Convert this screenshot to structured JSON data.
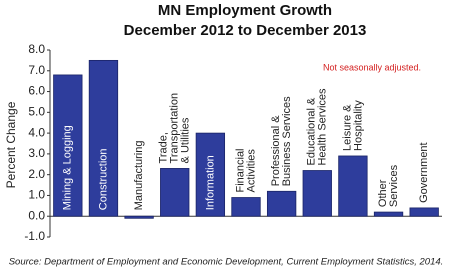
{
  "chart_data": {
    "type": "bar",
    "title": [
      "MN Employment Growth",
      "December 2012 to December 2013"
    ],
    "y_label": "Percent Change",
    "annotation": "Not seasonally adjusted.",
    "source": "Source: Department of Employment and Economic Development, Current Employment Statistics, 2014.",
    "categories": [
      [
        "Mining & Logging"
      ],
      [
        "Construction"
      ],
      [
        "Manufacturing"
      ],
      [
        "Trade,",
        "Transportation",
        "& Utilities"
      ],
      [
        "Information"
      ],
      [
        "Financial",
        "Activities"
      ],
      [
        "Professional &",
        "Business Services"
      ],
      [
        "Educational &",
        "Health Services"
      ],
      [
        "Leisure &",
        "Hospitality"
      ],
      [
        "Other",
        "Services"
      ],
      [
        "Government"
      ]
    ],
    "values": [
      6.8,
      7.5,
      -0.1,
      2.3,
      4.0,
      0.9,
      1.2,
      2.2,
      2.9,
      0.2,
      0.4
    ],
    "color": "#2e3d9c",
    "ylim": [
      -1,
      8
    ],
    "yticks": [
      {
        "value": -1,
        "label": "-1.0"
      },
      {
        "value": 0,
        "label": "0.0"
      },
      {
        "value": 1,
        "label": "1.0"
      },
      {
        "value": 2,
        "label": "2.0"
      },
      {
        "value": 3,
        "label": "3.0"
      },
      {
        "value": 4,
        "label": "4.0"
      },
      {
        "value": 5,
        "label": "5.0"
      },
      {
        "value": 6,
        "label": "6.0"
      },
      {
        "value": 7,
        "label": "7.0"
      },
      {
        "value": 8,
        "label": "8.0"
      }
    ]
  }
}
